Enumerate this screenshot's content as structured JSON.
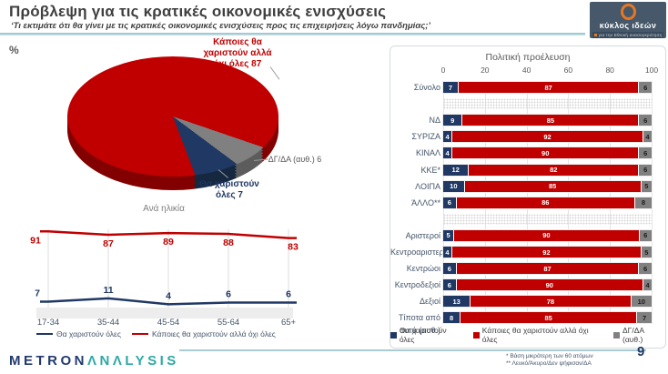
{
  "header": {
    "title": "Πρόβλεψη για τις κρατικές οικονομικές ενισχύσεις",
    "subtitle": "‘Τι εκτιμάτε ότι θα γίνει με τις κρατικές οικονομικές ενισχύσεις προς τις επιχειρήσεις λόγω πανδημίας;’",
    "unit_label": "%"
  },
  "logo": {
    "name": "κύκλος ιδεών",
    "tagline": "για την Εθνική ανασυγκρότηση"
  },
  "colors": {
    "navy": "#1f3864",
    "red": "#c00000",
    "gray": "#808080",
    "teal_rule": "#a9ccd3",
    "metron_blue": "#223a70",
    "metron_teal": "#2ea9a4",
    "logo_bg": "#46586a",
    "logo_orange": "#e87722"
  },
  "chart_data": [
    {
      "type": "pie",
      "style": "3d",
      "unit": "%",
      "slices": [
        {
          "label": "Κάποιες θα χαριστούν αλλά όχι όλες",
          "value": 87,
          "color": "#c00000"
        },
        {
          "label": "Θα χαριστούν όλες",
          "value": 7,
          "color": "#1f3864"
        },
        {
          "label": "ΔΓ/ΔΑ (αυθ.)",
          "value": 6,
          "color": "#808080"
        }
      ]
    },
    {
      "type": "line",
      "title": "Ανά ηλικία",
      "categories": [
        "17-34",
        "35-44",
        "45-54",
        "55-64",
        "65+"
      ],
      "series": [
        {
          "name": "Θα χαριστούν όλες",
          "color": "#1f3864",
          "values": [
            7,
            11,
            4,
            6,
            6
          ]
        },
        {
          "name": "Κάποιες θα χαριστούν αλλά όχι όλες",
          "color": "#c00000",
          "values": [
            91,
            87,
            89,
            88,
            83
          ]
        }
      ],
      "ylim": [
        0,
        100
      ],
      "legend_position": "bottom",
      "grid": true
    },
    {
      "type": "bar",
      "orientation": "horizontal-stacked",
      "title": "Πολιτική προέλευση",
      "ticks": [
        0,
        20,
        40,
        60,
        80,
        100
      ],
      "xlim": [
        0,
        100
      ],
      "series_names": [
        "Θα χαριστούν όλες",
        "Κάποιες θα χαριστούν αλλά όχι όλες",
        "ΔΓ/ΔΑ (αυθ.)"
      ],
      "series_colors": [
        "#1f3864",
        "#c00000",
        "#808080"
      ],
      "rows": [
        {
          "label": "Σύνολο",
          "values": [
            7,
            87,
            6
          ]
        },
        {
          "gap": true
        },
        {
          "label": "ΝΔ",
          "values": [
            9,
            85,
            6
          ]
        },
        {
          "label": "ΣΥΡΙΖΑ",
          "values": [
            4,
            92,
            4
          ]
        },
        {
          "label": "ΚΙΝΑΛ",
          "values": [
            4,
            90,
            6
          ]
        },
        {
          "label": "ΚΚΕ*",
          "values": [
            12,
            82,
            6
          ]
        },
        {
          "label": "ΛΟΙΠΑ",
          "values": [
            10,
            85,
            5
          ]
        },
        {
          "label": "ΆΛΛΟ**",
          "values": [
            6,
            86,
            8
          ]
        },
        {
          "gap": true
        },
        {
          "label": "Αριστεροί",
          "values": [
            5,
            90,
            6
          ]
        },
        {
          "label": "Κεντροαριστεροί",
          "values": [
            4,
            92,
            5
          ]
        },
        {
          "label": "Κεντρώοι",
          "values": [
            6,
            87,
            6
          ]
        },
        {
          "label": "Κεντροδεξιοί",
          "values": [
            6,
            90,
            4
          ]
        },
        {
          "label": "Δεξιοί",
          "values": [
            13,
            78,
            10
          ]
        },
        {
          "label": "Τίποτα από αυτά (αυθ.)",
          "values": [
            8,
            85,
            7
          ]
        }
      ],
      "legend_position": "bottom",
      "grid": true
    }
  ],
  "footer": {
    "brand_metron": "METRON",
    "brand_analysis": "ΛNΛLYSIS",
    "footnote1": "*  Βάση μικρότερη των 60 ατόμων",
    "footnote2": "** Λευκό/Άκυρο/Δεν ψήφισαν/ΔΑ",
    "page_number": "9"
  }
}
